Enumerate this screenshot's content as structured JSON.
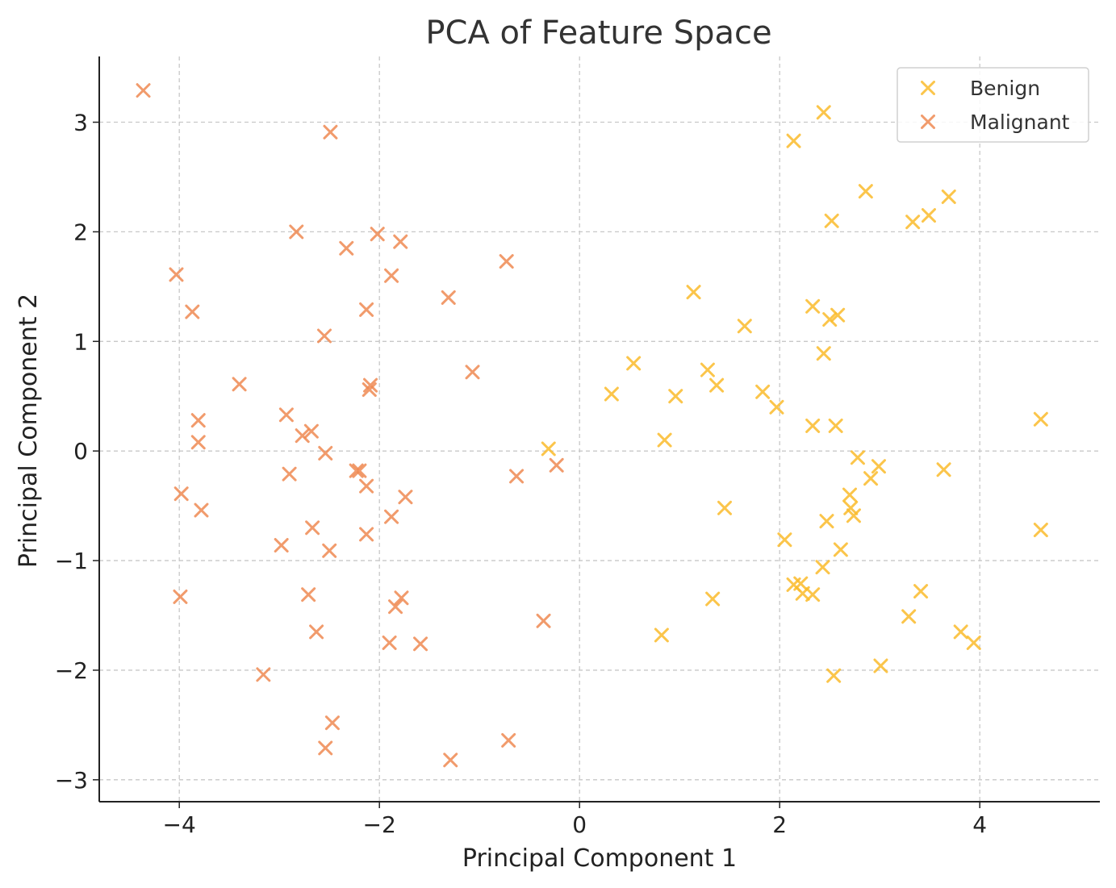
{
  "chart_data": {
    "type": "scatter",
    "title": "PCA of Feature Space",
    "xlabel": "Principal Component 1",
    "ylabel": "Principal Component 2",
    "xlim": [
      -4.8,
      5.2
    ],
    "ylim": [
      -3.2,
      3.6
    ],
    "x_ticks": [
      -4,
      -2,
      0,
      2,
      4
    ],
    "y_ticks": [
      -3,
      -2,
      -1,
      0,
      1,
      2,
      3
    ],
    "x_tick_labels": [
      "−4",
      "−2",
      "0",
      "2",
      "4"
    ],
    "y_tick_labels": [
      "−3",
      "−2",
      "−1",
      "0",
      "1",
      "2",
      "3"
    ],
    "grid": true,
    "marker": "x",
    "legend": {
      "position": "top-right",
      "entries": [
        "Benign",
        "Malignant"
      ]
    },
    "series": [
      {
        "name": "Benign",
        "color": "#fbbc2c",
        "points": [
          [
            2.44,
            3.09
          ],
          [
            2.14,
            2.83
          ],
          [
            2.86,
            2.37
          ],
          [
            3.69,
            2.32
          ],
          [
            3.49,
            2.15
          ],
          [
            3.33,
            2.09
          ],
          [
            2.52,
            2.1
          ],
          [
            1.14,
            1.45
          ],
          [
            2.33,
            1.32
          ],
          [
            2.58,
            1.24
          ],
          [
            2.5,
            1.2
          ],
          [
            1.65,
            1.14
          ],
          [
            2.44,
            0.89
          ],
          [
            0.54,
            0.8
          ],
          [
            1.28,
            0.74
          ],
          [
            1.37,
            0.6
          ],
          [
            1.83,
            0.54
          ],
          [
            0.32,
            0.52
          ],
          [
            0.96,
            0.5
          ],
          [
            1.97,
            0.4
          ],
          [
            4.61,
            0.29
          ],
          [
            2.33,
            0.23
          ],
          [
            2.56,
            0.23
          ],
          [
            0.85,
            0.1
          ],
          [
            -0.31,
            0.02
          ],
          [
            2.78,
            -0.06
          ],
          [
            2.99,
            -0.14
          ],
          [
            3.64,
            -0.17
          ],
          [
            2.91,
            -0.25
          ],
          [
            2.7,
            -0.4
          ],
          [
            2.71,
            -0.52
          ],
          [
            2.74,
            -0.59
          ],
          [
            1.45,
            -0.52
          ],
          [
            2.47,
            -0.64
          ],
          [
            4.61,
            -0.72
          ],
          [
            2.05,
            -0.81
          ],
          [
            2.61,
            -0.9
          ],
          [
            2.43,
            -1.06
          ],
          [
            2.14,
            -1.22
          ],
          [
            2.21,
            -1.21
          ],
          [
            2.23,
            -1.3
          ],
          [
            2.33,
            -1.31
          ],
          [
            3.41,
            -1.28
          ],
          [
            1.33,
            -1.35
          ],
          [
            3.29,
            -1.51
          ],
          [
            0.82,
            -1.68
          ],
          [
            3.81,
            -1.65
          ],
          [
            3.94,
            -1.75
          ],
          [
            3.01,
            -1.96
          ],
          [
            2.54,
            -2.05
          ]
        ]
      },
      {
        "name": "Malignant",
        "color": "#ef8a53",
        "points": [
          [
            -4.36,
            3.29
          ],
          [
            -2.49,
            2.91
          ],
          [
            -2.83,
            2.0
          ],
          [
            -2.02,
            1.98
          ],
          [
            -1.79,
            1.91
          ],
          [
            -2.33,
            1.85
          ],
          [
            -0.73,
            1.73
          ],
          [
            -4.03,
            1.61
          ],
          [
            -1.88,
            1.6
          ],
          [
            -1.31,
            1.4
          ],
          [
            -2.13,
            1.29
          ],
          [
            -3.87,
            1.27
          ],
          [
            -2.55,
            1.05
          ],
          [
            -1.07,
            0.72
          ],
          [
            -3.4,
            0.61
          ],
          [
            -2.09,
            0.6
          ],
          [
            -2.1,
            0.56
          ],
          [
            -2.93,
            0.33
          ],
          [
            -3.81,
            0.28
          ],
          [
            -2.68,
            0.18
          ],
          [
            -2.77,
            0.14
          ],
          [
            -3.81,
            0.08
          ],
          [
            -2.54,
            -0.02
          ],
          [
            -2.23,
            -0.18
          ],
          [
            -2.2,
            -0.18
          ],
          [
            -0.23,
            -0.13
          ],
          [
            -0.63,
            -0.23
          ],
          [
            -2.9,
            -0.21
          ],
          [
            -2.13,
            -0.32
          ],
          [
            -3.98,
            -0.39
          ],
          [
            -1.74,
            -0.42
          ],
          [
            -3.78,
            -0.54
          ],
          [
            -1.88,
            -0.6
          ],
          [
            -2.67,
            -0.7
          ],
          [
            -2.13,
            -0.76
          ],
          [
            -2.98,
            -0.86
          ],
          [
            -2.5,
            -0.91
          ],
          [
            -3.99,
            -1.33
          ],
          [
            -2.71,
            -1.31
          ],
          [
            -1.78,
            -1.34
          ],
          [
            -1.84,
            -1.42
          ],
          [
            -0.36,
            -1.55
          ],
          [
            -2.63,
            -1.65
          ],
          [
            -1.9,
            -1.75
          ],
          [
            -1.59,
            -1.76
          ],
          [
            -3.16,
            -2.04
          ],
          [
            -2.47,
            -2.48
          ],
          [
            -2.54,
            -2.71
          ],
          [
            -0.71,
            -2.64
          ],
          [
            -1.29,
            -2.82
          ]
        ]
      }
    ]
  }
}
